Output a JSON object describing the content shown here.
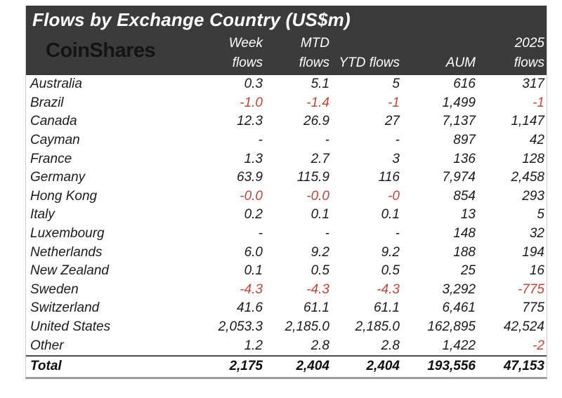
{
  "header": {
    "title": "Flows by Exchange Country (US$m)",
    "logo_text": "CoinShares"
  },
  "colors": {
    "header_bg": "#3b3b3b",
    "header_text": "#ffffff",
    "logo_text": "#141414",
    "body_text": "#1b1b1b",
    "negative": "#c2453e",
    "total_border": "#4a4a4a",
    "outer_border": "#cccccc",
    "bottom_border": "#9b9b9b"
  },
  "chart_data": {
    "type": "table",
    "title": "Flows by Exchange Country (US$m)",
    "columns": [
      {
        "label": "Week flows",
        "line1": "Week",
        "line2": "flows"
      },
      {
        "label": "MTD flows",
        "line1": "MTD",
        "line2": "flows"
      },
      {
        "label": "YTD flows",
        "line1": "",
        "line2": "YTD flows"
      },
      {
        "label": "AUM",
        "line1": "",
        "line2": "AUM"
      },
      {
        "label": "2025 flows",
        "line1": "2025",
        "line2": "flows"
      }
    ],
    "rows": [
      {
        "country": "Australia",
        "values": [
          "0.3",
          "5.1",
          "5",
          "616",
          "317"
        ]
      },
      {
        "country": "Brazil",
        "values": [
          "-1.0",
          "-1.4",
          "-1",
          "1,499",
          "-1"
        ]
      },
      {
        "country": "Canada",
        "values": [
          "12.3",
          "26.9",
          "27",
          "7,137",
          "1,147"
        ]
      },
      {
        "country": "Cayman",
        "values": [
          "-",
          "-",
          "-",
          "897",
          "42"
        ]
      },
      {
        "country": "France",
        "values": [
          "1.3",
          "2.7",
          "3",
          "136",
          "128"
        ]
      },
      {
        "country": "Germany",
        "values": [
          "63.9",
          "115.9",
          "116",
          "7,974",
          "2,458"
        ]
      },
      {
        "country": "Hong Kong",
        "values": [
          "-0.0",
          "-0.0",
          "-0",
          "854",
          "293"
        ]
      },
      {
        "country": "Italy",
        "values": [
          "0.2",
          "0.1",
          "0.1",
          "13",
          "5"
        ]
      },
      {
        "country": "Luxembourg",
        "values": [
          "-",
          "-",
          "-",
          "148",
          "32"
        ]
      },
      {
        "country": "Netherlands",
        "values": [
          "6.0",
          "9.2",
          "9.2",
          "188",
          "194"
        ]
      },
      {
        "country": "New Zealand",
        "values": [
          "0.1",
          "0.5",
          "0.5",
          "25",
          "16"
        ]
      },
      {
        "country": "Sweden",
        "values": [
          "-4.3",
          "-4.3",
          "-4.3",
          "3,292",
          "-775"
        ]
      },
      {
        "country": "Switzerland",
        "values": [
          "41.6",
          "61.1",
          "61.1",
          "6,461",
          "775"
        ]
      },
      {
        "country": "United States",
        "values": [
          "2,053.3",
          "2,185.0",
          "2,185.0",
          "162,895",
          "42,524"
        ]
      },
      {
        "country": "Other",
        "values": [
          "1.2",
          "2.8",
          "2.8",
          "1,422",
          "-2"
        ]
      }
    ],
    "total_row": {
      "label": "Total",
      "values": [
        "2,175",
        "2,404",
        "2,404",
        "193,556",
        "47,153"
      ]
    }
  }
}
